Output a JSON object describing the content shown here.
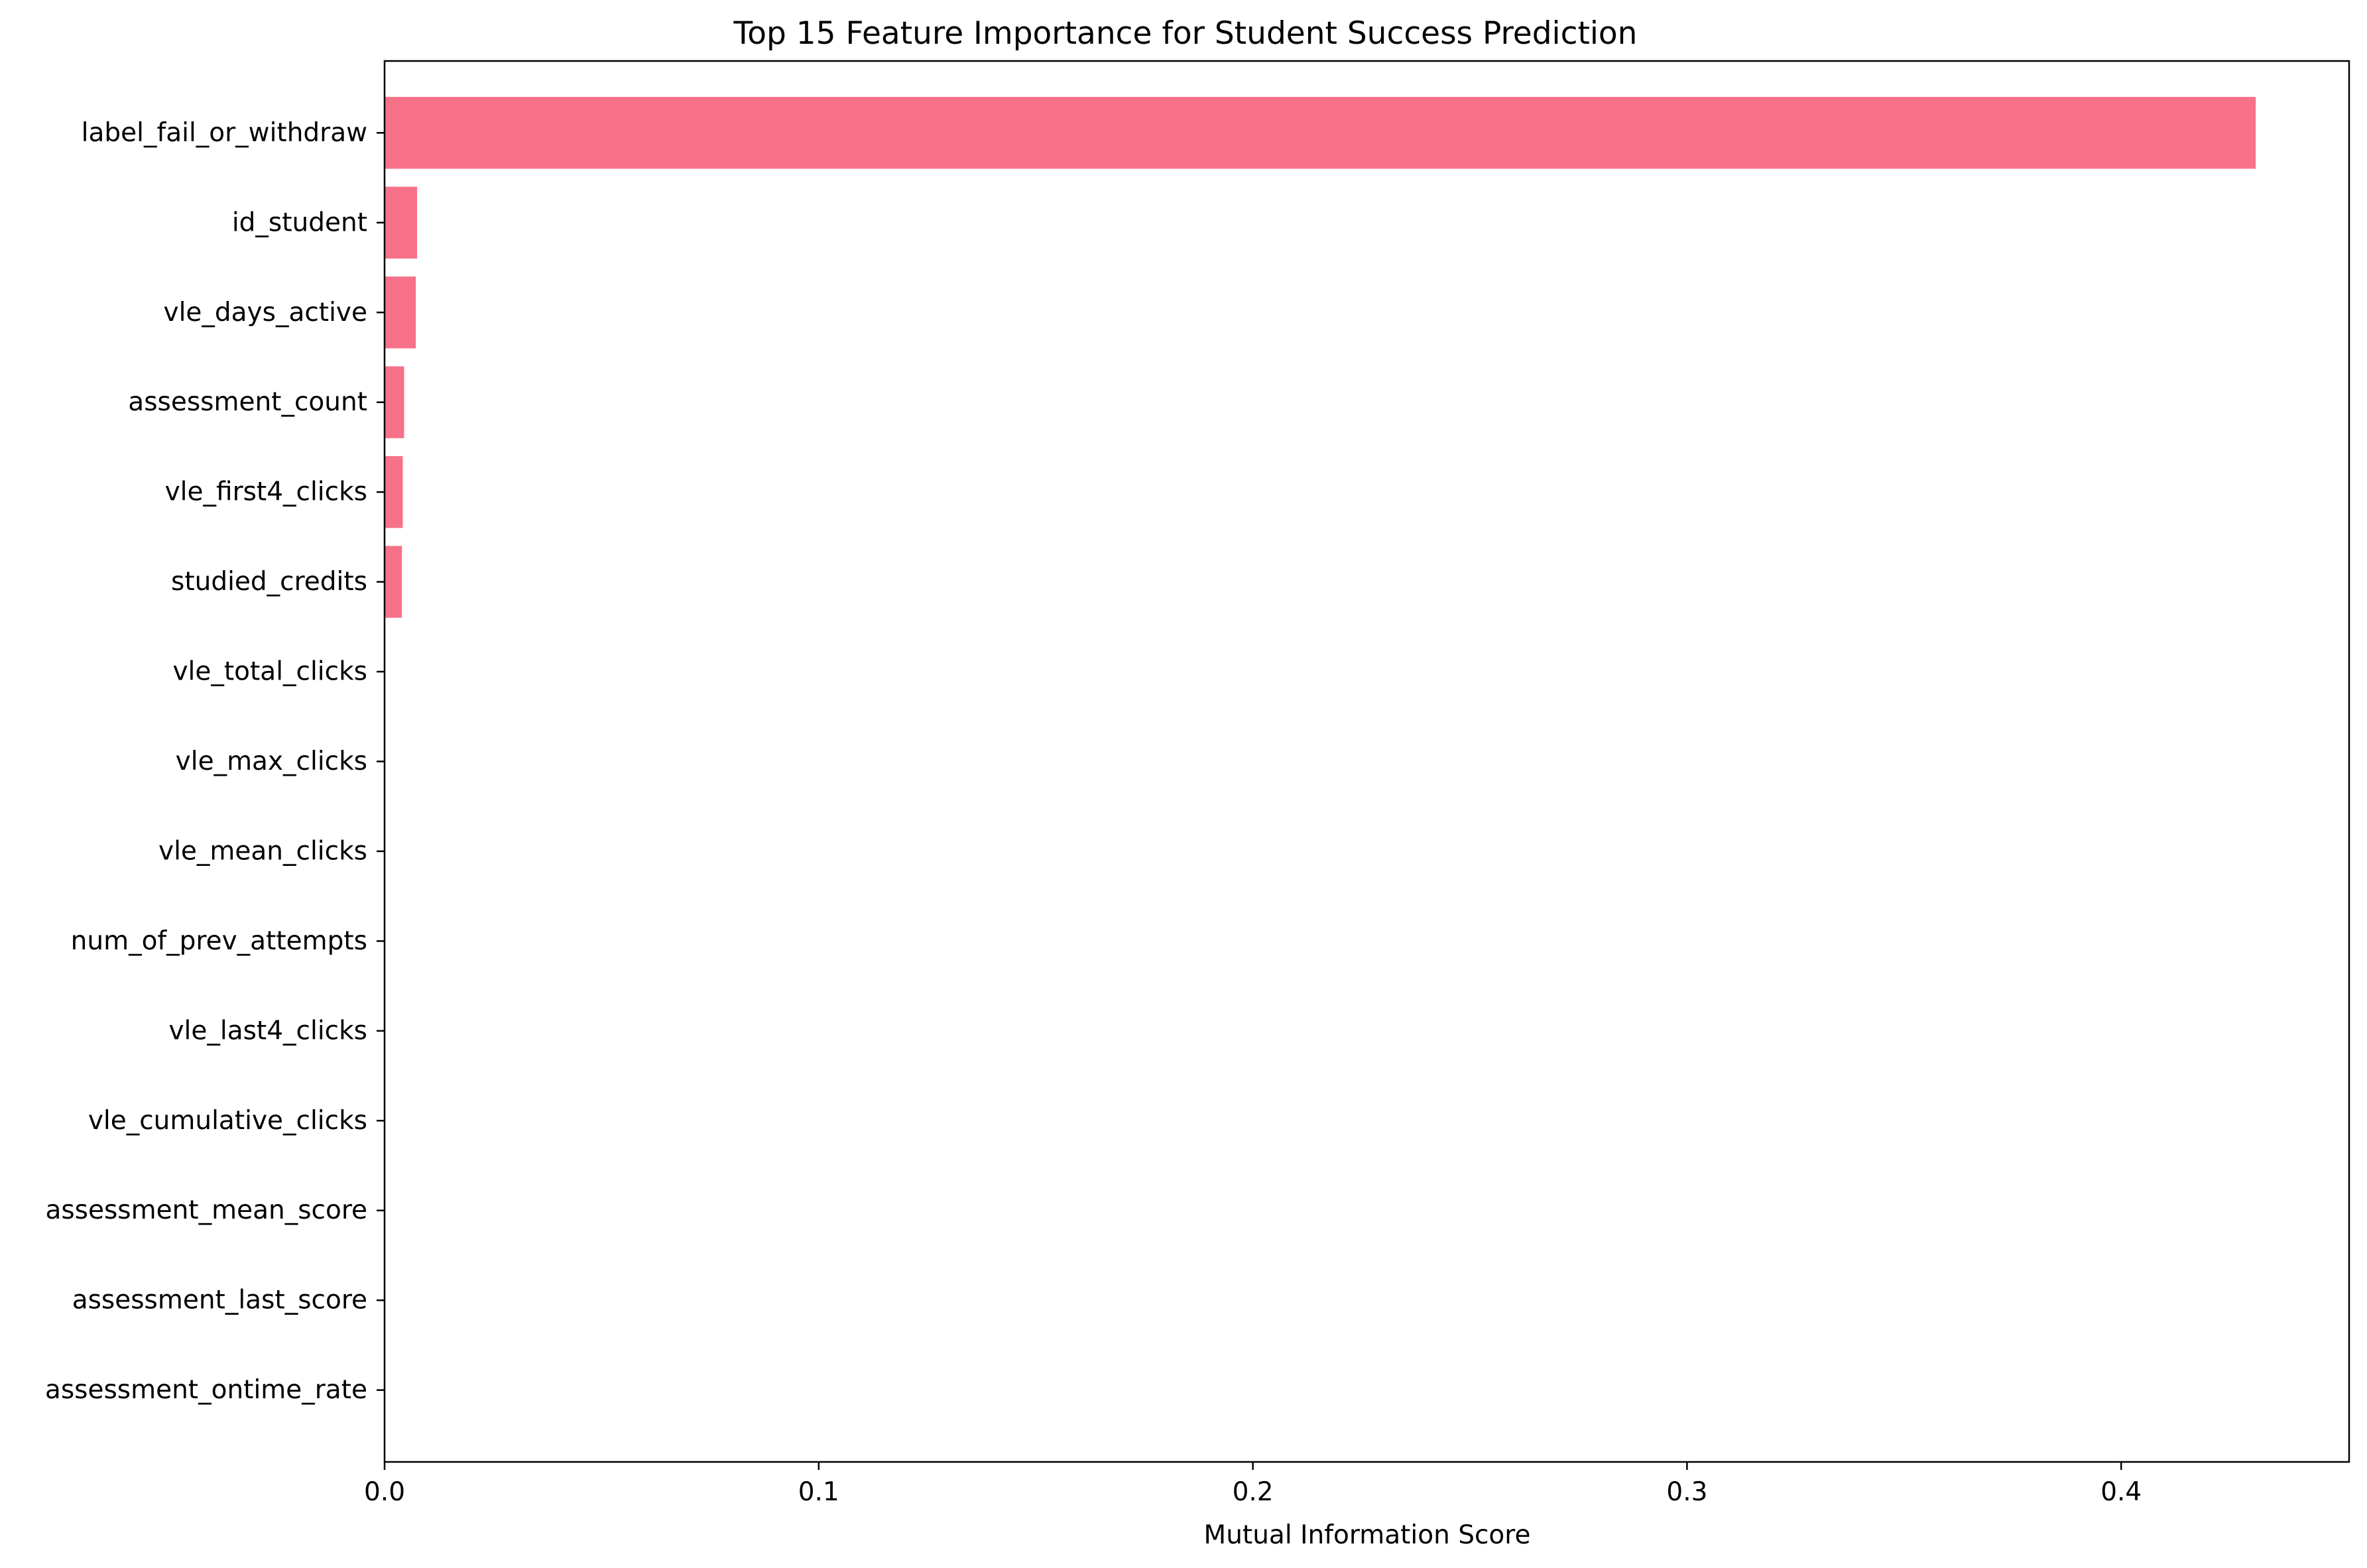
{
  "chart_data": {
    "type": "bar",
    "orientation": "horizontal",
    "title": "Top 15 Feature Importance for Student Success Prediction",
    "xlabel": "Mutual Information Score",
    "ylabel": "",
    "categories": [
      "label_fail_or_withdraw",
      "id_student",
      "vle_days_active",
      "assessment_count",
      "vle_first4_clicks",
      "studied_credits",
      "vle_total_clicks",
      "vle_max_clicks",
      "vle_mean_clicks",
      "num_of_prev_attempts",
      "vle_last4_clicks",
      "vle_cumulative_clicks",
      "assessment_mean_score",
      "assessment_last_score",
      "assessment_ontime_rate"
    ],
    "values": [
      0.431,
      0.0075,
      0.0072,
      0.0045,
      0.0042,
      0.004,
      0,
      0,
      0,
      0,
      0,
      0,
      0,
      0,
      0
    ],
    "xlim": [
      0,
      0.4525
    ],
    "xticks": [
      0.0,
      0.1,
      0.2,
      0.3,
      0.4
    ],
    "xtick_labels": [
      "0.0",
      "0.1",
      "0.2",
      "0.3",
      "0.4"
    ],
    "bar_color": "#f77189",
    "grid": false,
    "legend": "none"
  }
}
